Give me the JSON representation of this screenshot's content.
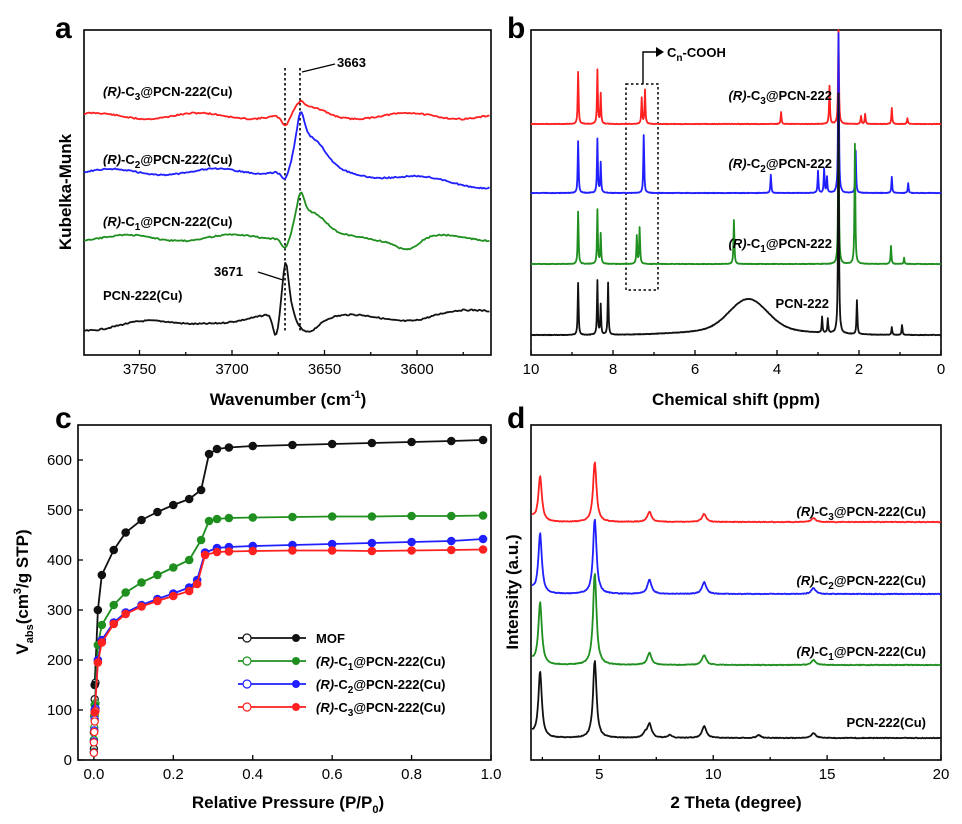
{
  "chart_data": [
    {
      "panel": "a",
      "type": "line",
      "xlabel": "Wavenumber",
      "xlabel_unit": "(cm",
      "xlabel_unit_sup": "-1",
      "xlabel_unit_end": ")",
      "ylabel": "Kubelka-Munk",
      "xlim": [
        3780,
        3560
      ],
      "xticks": [
        3750,
        3700,
        3650,
        3600
      ],
      "annotations": [
        {
          "text": "3663",
          "x": 3663
        },
        {
          "text": "3671",
          "x": 3671
        }
      ],
      "series": [
        {
          "name": "(R)-C3@PCN-222(Cu)",
          "color": "#ff2020",
          "label": {
            "pre": "(R)",
            "main": "-C",
            "sub": "3",
            "post": "@PCN-222(Cu)"
          }
        },
        {
          "name": "(R)-C2@PCN-222(Cu)",
          "color": "#1f1fff",
          "label": {
            "pre": "(R)",
            "main": "-C",
            "sub": "2",
            "post": "@PCN-222(Cu)"
          }
        },
        {
          "name": "(R)-C1@PCN-222(Cu)",
          "color": "#1f8f1f",
          "label": {
            "pre": "(R)",
            "main": "-C",
            "sub": "1",
            "post": "@PCN-222(Cu)"
          }
        },
        {
          "name": "PCN-222(Cu)",
          "color": "#111111",
          "label": {
            "pre": "",
            "main": "PCN-222(Cu)",
            "sub": "",
            "post": ""
          }
        }
      ]
    },
    {
      "panel": "b",
      "type": "line",
      "xlabel": "Chemical shift (ppm)",
      "xlim": [
        10,
        0
      ],
      "xticks": [
        10,
        8,
        6,
        4,
        2,
        0
      ],
      "annotation": {
        "main": "C",
        "sub": "n",
        "post": "-COOH",
        "box_x": [
          7.6,
          6.7
        ]
      },
      "series": [
        {
          "name": "(R)-C3@PCN-222",
          "color": "#ff2020",
          "label": {
            "pre": "(R)",
            "main": "-C",
            "sub": "3",
            "post": "@PCN-222"
          }
        },
        {
          "name": "(R)-C2@PCN-222",
          "color": "#1f1fff",
          "label": {
            "pre": "(R)",
            "main": "-C",
            "sub": "2",
            "post": "@PCN-222"
          }
        },
        {
          "name": "(R)-C1@PCN-222",
          "color": "#1f8f1f",
          "label": {
            "pre": "(R)",
            "main": "-C",
            "sub": "1",
            "post": "@PCN-222"
          }
        },
        {
          "name": "PCN-222",
          "color": "#111111",
          "label": {
            "pre": "",
            "main": "PCN-222",
            "sub": "",
            "post": ""
          }
        }
      ]
    },
    {
      "panel": "c",
      "type": "scatter",
      "xlabel": "Relative Pressure (P/P",
      "xlabel_sub": "0",
      "xlabel_end": ")",
      "ylabel_main": "V",
      "ylabel_sub": "abs",
      "ylabel_rest": "(cm",
      "ylabel_sup": "3",
      "ylabel_end": "/g STP)",
      "xlim": [
        -0.04,
        1.0
      ],
      "ylim": [
        0,
        670
      ],
      "xticks": [
        "0.0",
        "0.2",
        "0.4",
        "0.6",
        "0.8",
        "1.0"
      ],
      "yticks": [
        "0",
        "100",
        "200",
        "300",
        "400",
        "500",
        "600"
      ],
      "series": [
        {
          "name": "MOF",
          "color": "#111111",
          "label": {
            "pre": "",
            "main": "MOF",
            "sub": "",
            "post": ""
          },
          "x": [
            0.002,
            0.01,
            0.02,
            0.05,
            0.08,
            0.12,
            0.16,
            0.2,
            0.24,
            0.27,
            0.29,
            0.31,
            0.34,
            0.4,
            0.5,
            0.6,
            0.7,
            0.8,
            0.9,
            0.98
          ],
          "y": [
            150,
            300,
            370,
            420,
            455,
            480,
            496,
            510,
            522,
            540,
            612,
            622,
            625,
            628,
            630,
            632,
            634,
            636,
            638,
            640
          ]
        },
        {
          "name": "(R)-C1@PCN-222(Cu)",
          "color": "#1f8f1f",
          "label": {
            "pre": "(R)",
            "main": "-C",
            "sub": "1",
            "post": "@PCN-222(Cu)"
          },
          "x": [
            0.002,
            0.01,
            0.02,
            0.05,
            0.08,
            0.12,
            0.16,
            0.2,
            0.24,
            0.27,
            0.29,
            0.31,
            0.34,
            0.4,
            0.5,
            0.6,
            0.7,
            0.8,
            0.9,
            0.98
          ],
          "y": [
            110,
            230,
            270,
            310,
            335,
            355,
            370,
            385,
            400,
            440,
            478,
            482,
            484,
            485,
            486,
            487,
            487,
            488,
            488,
            489
          ]
        },
        {
          "name": "(R)-C2@PCN-222(Cu)",
          "color": "#1f1fff",
          "label": {
            "pre": "(R)",
            "main": "-C",
            "sub": "2",
            "post": "@PCN-222(Cu)"
          },
          "x": [
            0.002,
            0.01,
            0.02,
            0.05,
            0.08,
            0.12,
            0.16,
            0.2,
            0.24,
            0.26,
            0.28,
            0.31,
            0.34,
            0.4,
            0.5,
            0.6,
            0.7,
            0.8,
            0.9,
            0.98
          ],
          "y": [
            100,
            200,
            240,
            275,
            295,
            310,
            322,
            333,
            345,
            360,
            415,
            424,
            426,
            428,
            430,
            432,
            434,
            436,
            438,
            442
          ]
        },
        {
          "name": "(R)-C3@PCN-222(Cu)",
          "color": "#ff2020",
          "label": {
            "pre": "(R)",
            "main": "-C",
            "sub": "3",
            "post": "@PCN-222(Cu)"
          },
          "x": [
            0.002,
            0.01,
            0.02,
            0.05,
            0.08,
            0.12,
            0.16,
            0.2,
            0.24,
            0.26,
            0.28,
            0.31,
            0.34,
            0.4,
            0.5,
            0.6,
            0.7,
            0.8,
            0.9,
            0.98
          ],
          "y": [
            95,
            195,
            235,
            272,
            292,
            307,
            318,
            328,
            338,
            352,
            410,
            416,
            417,
            418,
            419,
            419,
            418,
            419,
            420,
            421
          ]
        }
      ]
    },
    {
      "panel": "d",
      "type": "line",
      "xlabel": "2 Theta (degree)",
      "ylabel": "Intensity (a.u.)",
      "xlim": [
        2,
        20
      ],
      "xticks": [
        5,
        10,
        15,
        20
      ],
      "peaks_2theta": [
        2.4,
        4.8,
        7.2,
        9.6,
        14.4
      ],
      "series": [
        {
          "name": "(R)-C3@PCN-222(Cu)",
          "color": "#ff2020",
          "label": {
            "pre": "(R)",
            "main": "-C",
            "sub": "3",
            "post": "@PCN-222(Cu)"
          }
        },
        {
          "name": "(R)-C2@PCN-222(Cu)",
          "color": "#1f1fff",
          "label": {
            "pre": "(R)",
            "main": "-C",
            "sub": "2",
            "post": "@PCN-222(Cu)"
          }
        },
        {
          "name": "(R)-C1@PCN-222(Cu)",
          "color": "#1f8f1f",
          "label": {
            "pre": "(R)",
            "main": "-C",
            "sub": "1",
            "post": "@PCN-222(Cu)"
          }
        },
        {
          "name": "PCN-222(Cu)",
          "color": "#111111",
          "label": {
            "pre": "",
            "main": "PCN-222(Cu)",
            "sub": "",
            "post": ""
          }
        }
      ]
    }
  ],
  "panels": {
    "a": "a",
    "b": "b",
    "c": "c",
    "d": "d"
  }
}
